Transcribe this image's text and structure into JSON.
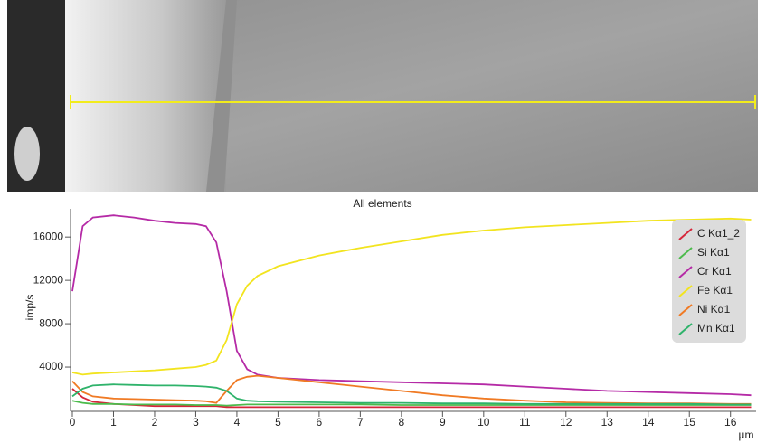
{
  "chart_data": {
    "type": "line",
    "title": "All elements",
    "y_label": "imp/s",
    "x_label": "µm",
    "x": [
      0,
      0.25,
      0.5,
      1,
      1.5,
      2,
      2.5,
      3,
      3.25,
      3.5,
      3.75,
      4,
      4.25,
      4.5,
      5,
      6,
      7,
      8,
      9,
      10,
      11,
      12,
      13,
      14,
      15,
      16,
      16.5
    ],
    "series": [
      {
        "name": "C Kα1_2",
        "color": "#d6263a",
        "values": [
          2000,
          1200,
          800,
          600,
          500,
          400,
          400,
          400,
          400,
          400,
          300,
          300,
          300,
          300,
          300,
          300,
          300,
          300,
          300,
          300,
          300,
          300,
          300,
          300,
          300,
          300,
          300
        ]
      },
      {
        "name": "Si Kα1",
        "color": "#4cbb4c",
        "values": [
          900,
          700,
          600,
          600,
          550,
          550,
          550,
          500,
          500,
          500,
          450,
          500,
          550,
          550,
          550,
          550,
          550,
          500,
          500,
          500,
          500,
          500,
          500,
          500,
          500,
          500,
          500
        ]
      },
      {
        "name": "Cr Kα1",
        "color": "#b52aa6",
        "values": [
          11000,
          17000,
          17800,
          18000,
          17800,
          17500,
          17300,
          17200,
          17000,
          15500,
          11000,
          5500,
          3800,
          3300,
          3000,
          2800,
          2700,
          2600,
          2500,
          2400,
          2200,
          2000,
          1800,
          1700,
          1600,
          1500,
          1400
        ]
      },
      {
        "name": "Fe Kα1",
        "color": "#f2e41f",
        "values": [
          3500,
          3300,
          3400,
          3500,
          3600,
          3700,
          3850,
          4000,
          4200,
          4600,
          6500,
          9800,
          11500,
          12400,
          13300,
          14300,
          15000,
          15600,
          16200,
          16600,
          16900,
          17100,
          17300,
          17500,
          17600,
          17700,
          17600
        ]
      },
      {
        "name": "Ni Kα1",
        "color": "#f07a24",
        "values": [
          2700,
          1700,
          1300,
          1100,
          1050,
          1000,
          950,
          900,
          850,
          700,
          1800,
          2800,
          3100,
          3200,
          3000,
          2600,
          2200,
          1800,
          1400,
          1100,
          900,
          750,
          700,
          650,
          650,
          600,
          600
        ]
      },
      {
        "name": "Mn Kα1",
        "color": "#2fb36b",
        "values": [
          1300,
          2000,
          2300,
          2400,
          2350,
          2300,
          2300,
          2250,
          2200,
          2100,
          1800,
          1100,
          900,
          850,
          800,
          750,
          700,
          700,
          650,
          650,
          600,
          600,
          600,
          600,
          600,
          550,
          550
        ]
      }
    ],
    "xlim": [
      0,
      16.6
    ],
    "ylim": [
      0,
      18600
    ],
    "xticks": [
      0,
      1,
      2,
      3,
      4,
      5,
      6,
      7,
      8,
      9,
      10,
      11,
      12,
      13,
      14,
      15,
      16
    ],
    "yticks": [
      4000,
      8000,
      12000,
      16000
    ],
    "legend": "upper right"
  }
}
